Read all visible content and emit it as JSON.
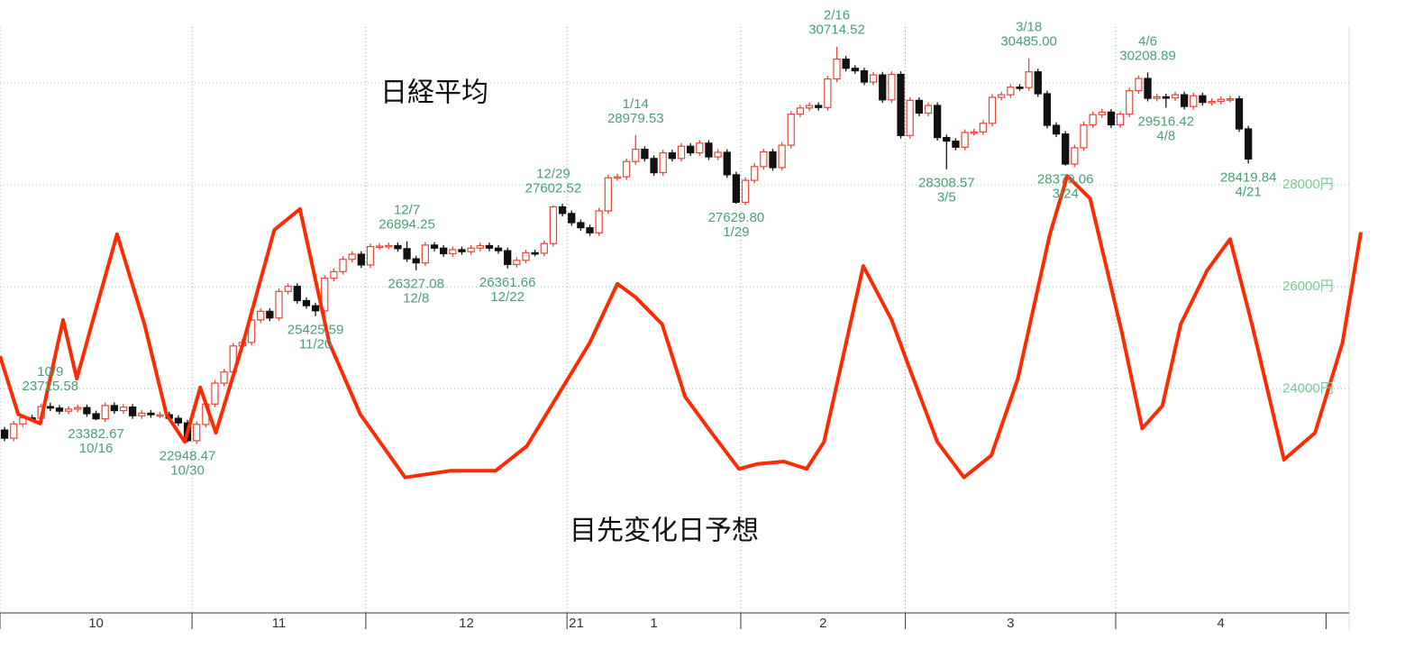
{
  "chart_data": {
    "type": "candlestick",
    "title": "日経平均",
    "ylim": [
      19600,
      31630
    ],
    "yticks": [
      {
        "value": 24000,
        "label": "24000円"
      },
      {
        "value": 26000,
        "label": "26000円"
      },
      {
        "value": 28000,
        "label": "28000円"
      }
    ],
    "ygrid": [
      30000
    ],
    "grid": true,
    "xlim": [
      0,
      149
    ],
    "up_color": "#e8463a",
    "down_color": "#111111",
    "months": [
      {
        "label": "10",
        "start": 0
      },
      {
        "label": "11",
        "start": 21
      },
      {
        "label": "12",
        "start": 40
      },
      {
        "label": "1",
        "start": 62
      },
      {
        "label": "2",
        "start": 81
      },
      {
        "label": "3",
        "start": 99
      },
      {
        "label": "4",
        "start": 122
      },
      {
        "label": null,
        "start": 145
      }
    ],
    "year": {
      "label": "21",
      "start": 62
    },
    "candles": [
      [
        23190,
        23250,
        22970,
        23030
      ],
      [
        23030,
        23370,
        22970,
        23310
      ],
      [
        23310,
        23490,
        23250,
        23430
      ],
      [
        23430,
        23490,
        23360,
        23420
      ],
      [
        23420,
        23710,
        23360,
        23650
      ],
      [
        23650,
        23725.58,
        23560,
        23620
      ],
      [
        23620,
        23680,
        23500,
        23560
      ],
      [
        23560,
        23660,
        23500,
        23600
      ],
      [
        23600,
        23690,
        23540,
        23630
      ],
      [
        23630,
        23690,
        23450,
        23510
      ],
      [
        23510,
        23570,
        23382.67,
        23410
      ],
      [
        23410,
        23730,
        23350,
        23670
      ],
      [
        23670,
        23730,
        23510,
        23570
      ],
      [
        23570,
        23700,
        23510,
        23640
      ],
      [
        23640,
        23700,
        23410,
        23470
      ],
      [
        23470,
        23580,
        23410,
        23520
      ],
      [
        23520,
        23580,
        23430,
        23490
      ],
      [
        23490,
        23550,
        23430,
        23490
      ],
      [
        23490,
        23550,
        23360,
        23420
      ],
      [
        23420,
        23480,
        23270,
        23330
      ],
      [
        23330,
        23390,
        22948.47,
        22980
      ],
      [
        22980,
        23360,
        22920,
        23300
      ],
      [
        23300,
        23760,
        23240,
        23700
      ],
      [
        23700,
        24170,
        23640,
        24110
      ],
      [
        24110,
        24390,
        24050,
        24330
      ],
      [
        24330,
        24900,
        24270,
        24840
      ],
      [
        24840,
        24970,
        24780,
        24910
      ],
      [
        24910,
        25410,
        24850,
        25350
      ],
      [
        25350,
        25580,
        25290,
        25520
      ],
      [
        25520,
        25580,
        25330,
        25390
      ],
      [
        25390,
        25970,
        25330,
        25910
      ],
      [
        25910,
        26070,
        25850,
        26010
      ],
      [
        26010,
        26070,
        25670,
        25730
      ],
      [
        25730,
        25790,
        25570,
        25630
      ],
      [
        25630,
        25690,
        25425.59,
        25530
      ],
      [
        25530,
        26230,
        25470,
        26170
      ],
      [
        26170,
        26360,
        26110,
        26300
      ],
      [
        26300,
        26600,
        26240,
        26540
      ],
      [
        26540,
        26700,
        26480,
        26640
      ],
      [
        26640,
        26700,
        26370,
        26430
      ],
      [
        26430,
        26850,
        26370,
        26790
      ],
      [
        26790,
        26860,
        26730,
        26800
      ],
      [
        26800,
        26870,
        26740,
        26810
      ],
      [
        26810,
        26870,
        26690,
        26750
      ],
      [
        26750,
        26894.25,
        26490,
        26550
      ],
      [
        26550,
        26610,
        26327.08,
        26470
      ],
      [
        26470,
        26880,
        26410,
        26820
      ],
      [
        26820,
        26880,
        26700,
        26760
      ],
      [
        26760,
        26820,
        26590,
        26650
      ],
      [
        26650,
        26790,
        26590,
        26730
      ],
      [
        26730,
        26790,
        26630,
        26690
      ],
      [
        26690,
        26820,
        26630,
        26760
      ],
      [
        26760,
        26870,
        26700,
        26810
      ],
      [
        26810,
        26870,
        26700,
        26760
      ],
      [
        26760,
        26820,
        26650,
        26710
      ],
      [
        26710,
        26770,
        26361.66,
        26440
      ],
      [
        26440,
        26580,
        26380,
        26520
      ],
      [
        26520,
        26730,
        26460,
        26670
      ],
      [
        26670,
        26730,
        26600,
        26660
      ],
      [
        26660,
        26910,
        26600,
        26850
      ],
      [
        26850,
        27602.52,
        26790,
        27570
      ],
      [
        27570,
        27630,
        27380,
        27440
      ],
      [
        27440,
        27500,
        27200,
        27260
      ],
      [
        27260,
        27320,
        27100,
        27160
      ],
      [
        27160,
        27220,
        27000,
        27060
      ],
      [
        27060,
        27550,
        27000,
        27490
      ],
      [
        27490,
        28200,
        27430,
        28140
      ],
      [
        28140,
        28220,
        28080,
        28160
      ],
      [
        28160,
        28520,
        28100,
        28460
      ],
      [
        28460,
        28979.53,
        28400,
        28700
      ],
      [
        28700,
        28760,
        28460,
        28520
      ],
      [
        28520,
        28580,
        28180,
        28240
      ],
      [
        28240,
        28690,
        28180,
        28630
      ],
      [
        28630,
        28690,
        28460,
        28520
      ],
      [
        28520,
        28820,
        28460,
        28760
      ],
      [
        28760,
        28820,
        28570,
        28630
      ],
      [
        28630,
        28880,
        28570,
        28820
      ],
      [
        28820,
        28880,
        28490,
        28550
      ],
      [
        28550,
        28700,
        28490,
        28640
      ],
      [
        28640,
        28700,
        28140,
        28200
      ],
      [
        28200,
        28260,
        27629.8,
        27660
      ],
      [
        27660,
        28150,
        27600,
        28090
      ],
      [
        28090,
        28420,
        28030,
        28360
      ],
      [
        28360,
        28710,
        28300,
        28650
      ],
      [
        28650,
        28710,
        28280,
        28340
      ],
      [
        28340,
        28840,
        28280,
        28780
      ],
      [
        28780,
        29450,
        28720,
        29390
      ],
      [
        29390,
        29570,
        29330,
        29510
      ],
      [
        29510,
        29620,
        29450,
        29560
      ],
      [
        29560,
        29620,
        29460,
        29520
      ],
      [
        29520,
        30140,
        29460,
        30080
      ],
      [
        30080,
        30714.52,
        30020,
        30470
      ],
      [
        30470,
        30530,
        30230,
        30290
      ],
      [
        30290,
        30350,
        30180,
        30240
      ],
      [
        30240,
        30300,
        29960,
        30020
      ],
      [
        30020,
        30220,
        29960,
        30160
      ],
      [
        30160,
        30220,
        29610,
        29670
      ],
      [
        29670,
        30230,
        29610,
        30170
      ],
      [
        30170,
        30230,
        28910,
        28970
      ],
      [
        28970,
        29720,
        28910,
        29660
      ],
      [
        29660,
        29720,
        29350,
        29410
      ],
      [
        29410,
        29620,
        29350,
        29560
      ],
      [
        29560,
        29620,
        28870,
        28930
      ],
      [
        28930,
        28990,
        28308.57,
        28860
      ],
      [
        28860,
        28920,
        28680,
        28740
      ],
      [
        28740,
        29090,
        28680,
        29030
      ],
      [
        29030,
        29100,
        28970,
        29040
      ],
      [
        29040,
        29270,
        28980,
        29210
      ],
      [
        29210,
        29780,
        29150,
        29720
      ],
      [
        29720,
        29830,
        29660,
        29770
      ],
      [
        29770,
        29980,
        29710,
        29920
      ],
      [
        29920,
        29980,
        29850,
        29910
      ],
      [
        29910,
        30485,
        29850,
        30220
      ],
      [
        30220,
        30280,
        29730,
        29790
      ],
      [
        29790,
        29850,
        29110,
        29170
      ],
      [
        29170,
        29230,
        28940,
        29000
      ],
      [
        29000,
        29060,
        28379.06,
        28410
      ],
      [
        28410,
        28790,
        28350,
        28730
      ],
      [
        28730,
        29240,
        28670,
        29180
      ],
      [
        29180,
        29440,
        29120,
        29380
      ],
      [
        29380,
        29490,
        29320,
        29430
      ],
      [
        29430,
        29490,
        29120,
        29180
      ],
      [
        29180,
        29450,
        29120,
        29390
      ],
      [
        29390,
        29910,
        29330,
        29850
      ],
      [
        29850,
        30150,
        29790,
        30090
      ],
      [
        30090,
        30208.89,
        29640,
        29700
      ],
      [
        29700,
        29790,
        29640,
        29730
      ],
      [
        29730,
        29790,
        29516.42,
        29710
      ],
      [
        29710,
        29830,
        29650,
        29770
      ],
      [
        29770,
        29830,
        29480,
        29540
      ],
      [
        29540,
        29810,
        29480,
        29750
      ],
      [
        29750,
        29810,
        29560,
        29620
      ],
      [
        29620,
        29700,
        29560,
        29640
      ],
      [
        29640,
        29740,
        29580,
        29680
      ],
      [
        29680,
        29750,
        29620,
        29690
      ],
      [
        29690,
        29750,
        29040,
        29100
      ],
      [
        29100,
        29160,
        28419.84,
        28510
      ]
    ],
    "annotations": [
      {
        "i": 5,
        "of": "high",
        "date": "10/9",
        "price": "23725.58"
      },
      {
        "i": 10,
        "of": "low",
        "date": "10/16",
        "price": "23382.67"
      },
      {
        "i": 20,
        "of": "low",
        "date": "10/30",
        "price": "22948.47"
      },
      {
        "i": 34,
        "of": "low",
        "date": "11/20",
        "price": "25425.59"
      },
      {
        "i": 44,
        "of": "high",
        "date": "12/7",
        "price": "26894.25"
      },
      {
        "i": 45,
        "of": "low",
        "date": "12/8",
        "price": "26327.08"
      },
      {
        "i": 55,
        "of": "low",
        "date": "12/22",
        "price": "26361.66"
      },
      {
        "i": 60,
        "of": "high",
        "date": "12/29",
        "price": "27602.52"
      },
      {
        "i": 69,
        "of": "high",
        "date": "1/14",
        "price": "28979.53"
      },
      {
        "i": 80,
        "of": "low",
        "date": "1/29",
        "price": "27629.80"
      },
      {
        "i": 91,
        "of": "high",
        "date": "2/16",
        "price": "30714.52"
      },
      {
        "i": 103,
        "of": "low",
        "date": "3/5",
        "price": "28308.57"
      },
      {
        "i": 112,
        "of": "high",
        "date": "3/18",
        "price": "30485.00"
      },
      {
        "i": 116,
        "of": "low",
        "date": "3/24",
        "price": "28379.06"
      },
      {
        "i": 125,
        "of": "high",
        "date": "4/6",
        "price": "30208.89"
      },
      {
        "i": 127,
        "of": "low",
        "date": "4/8",
        "price": "29516.42"
      },
      {
        "i": 136,
        "of": "low",
        "date": "4/21",
        "price": "28419.84"
      }
    ],
    "y2lim": [
      0,
      100
    ],
    "forecast": {
      "name": "目先変化日予想",
      "color": "#ff2a00",
      "x": [
        0,
        2,
        4.4,
        6.9,
        8.4,
        10.3,
        12.8,
        15.8,
        18.2,
        20.2,
        21.9,
        23.6,
        26.6,
        30,
        32.8,
        36,
        39.4,
        44.3,
        49.3,
        54.2,
        57.6,
        62.1,
        64.5,
        67.5,
        69.5,
        72.4,
        74.9,
        77.8,
        80.8,
        82.8,
        85.7,
        88.2,
        90.1,
        94.4,
        97.5,
        99.5,
        102.5,
        105.4,
        108.4,
        111.3,
        114.8,
        116.7,
        119.2,
        122.7,
        124.9,
        127.1,
        129.1,
        132,
        134.5,
        136.9,
        140.4,
        143.8,
        146.8,
        148.8
      ],
      "values": [
        41.9,
        32.4,
        30.9,
        47.8,
        38.2,
        48.5,
        61.8,
        47.1,
        32.4,
        27.9,
        36.8,
        29.4,
        44.1,
        62.5,
        65.9,
        44.1,
        32.4,
        22.1,
        23.2,
        23.2,
        27.2,
        38.2,
        44.1,
        53.7,
        51.5,
        47.1,
        35.3,
        29.4,
        23.5,
        24.3,
        24.7,
        23.5,
        27.9,
        56.6,
        47.8,
        39.7,
        27.9,
        22.1,
        25.7,
        38.2,
        61.8,
        71.3,
        67.6,
        45.6,
        30.1,
        33.8,
        47.1,
        55.9,
        61,
        47.1,
        25,
        29.4,
        44.1,
        62.1
      ]
    }
  }
}
